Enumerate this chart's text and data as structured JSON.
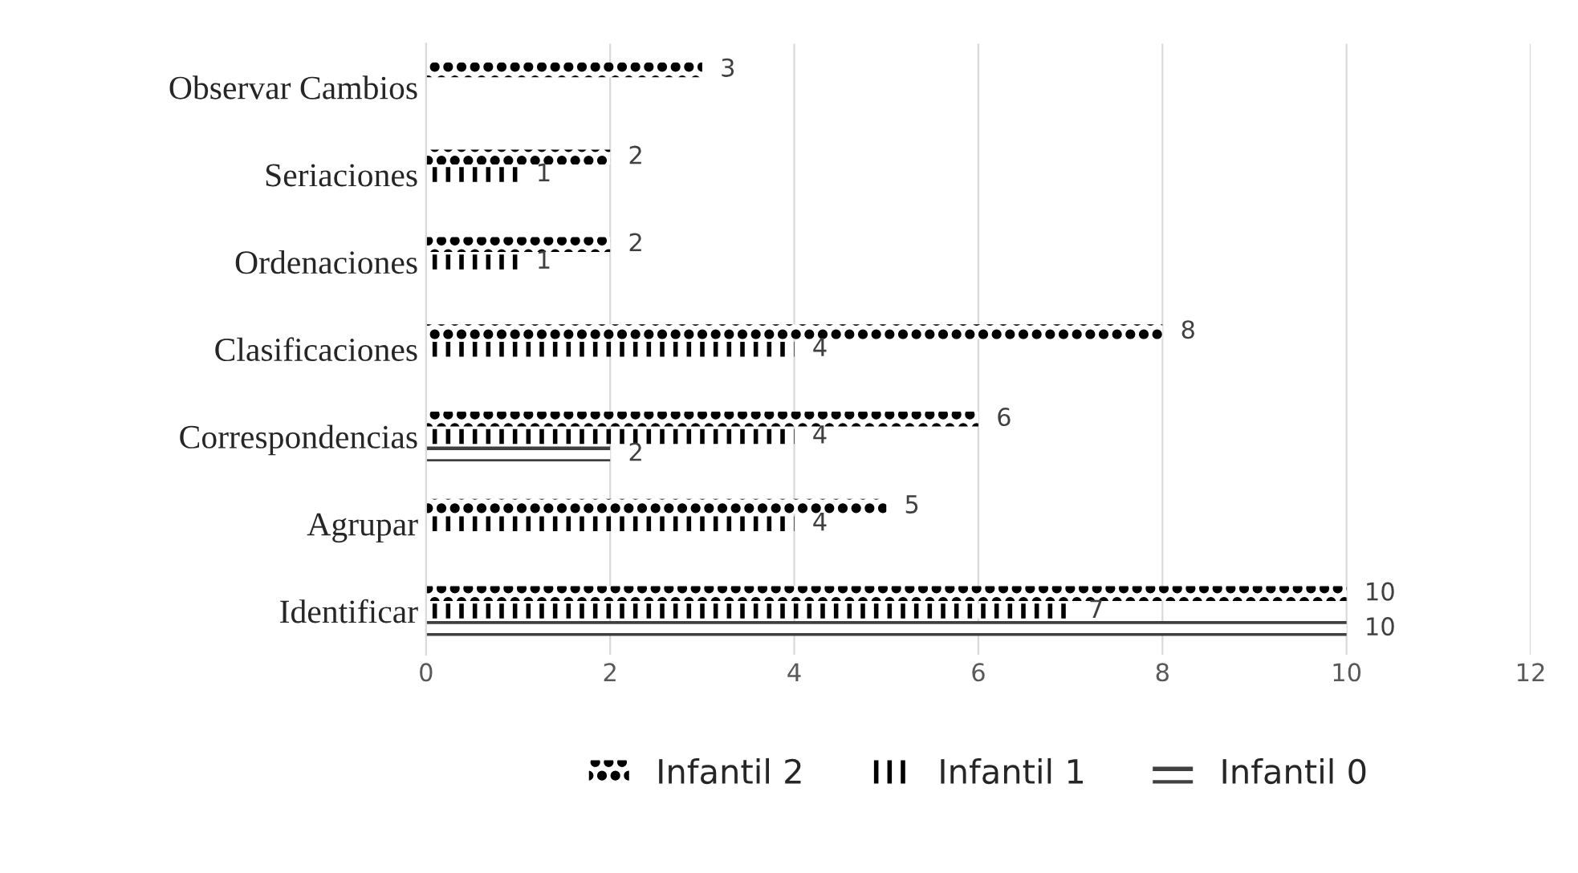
{
  "chart_data": {
    "type": "bar",
    "orientation": "horizontal",
    "categories": [
      "Observar Cambios",
      "Seriaciones",
      "Ordenaciones",
      "Clasificaciones",
      "Correspondencias",
      "Agrupar",
      "Identificar"
    ],
    "series": [
      {
        "name": "Infantil 2",
        "color": "#000000",
        "values": [
          3,
          2,
          2,
          8,
          6,
          5,
          10
        ]
      },
      {
        "name": "Infantil 1",
        "color": "#000000",
        "values": [
          null,
          1,
          1,
          4,
          4,
          4,
          7
        ]
      },
      {
        "name": "Infantil 0",
        "color": "#404040",
        "values": [
          null,
          null,
          null,
          null,
          2,
          null,
          10
        ]
      }
    ],
    "xlim": [
      0,
      12
    ],
    "xticks": [
      0,
      2,
      4,
      6,
      8,
      10,
      12
    ],
    "grid": "x",
    "legend": "bottom",
    "data_labels": true
  }
}
